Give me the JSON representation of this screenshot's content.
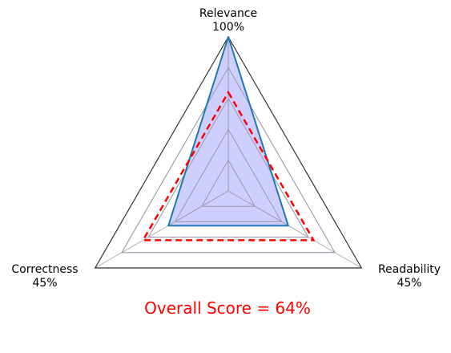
{
  "chart_data": {
    "type": "radar",
    "axes": [
      {
        "name": "Relevance",
        "value_label": "100%"
      },
      {
        "name": "Readability",
        "value_label": "45%"
      },
      {
        "name": "Correctness",
        "value_label": "45%"
      }
    ],
    "series": [
      {
        "values": [
          100,
          45,
          45
        ],
        "style": "filled",
        "color": "#1f77b4",
        "fill": "#ccccff"
      },
      {
        "values": [
          64,
          64,
          64
        ],
        "style": "dashed",
        "color": "#ff0000"
      }
    ],
    "rlim": [
      0,
      100
    ],
    "grid_levels": [
      20,
      40,
      60,
      80
    ],
    "grid": true,
    "annotation": "Overall Score = 64%",
    "annotation_color": "#ff0000"
  }
}
